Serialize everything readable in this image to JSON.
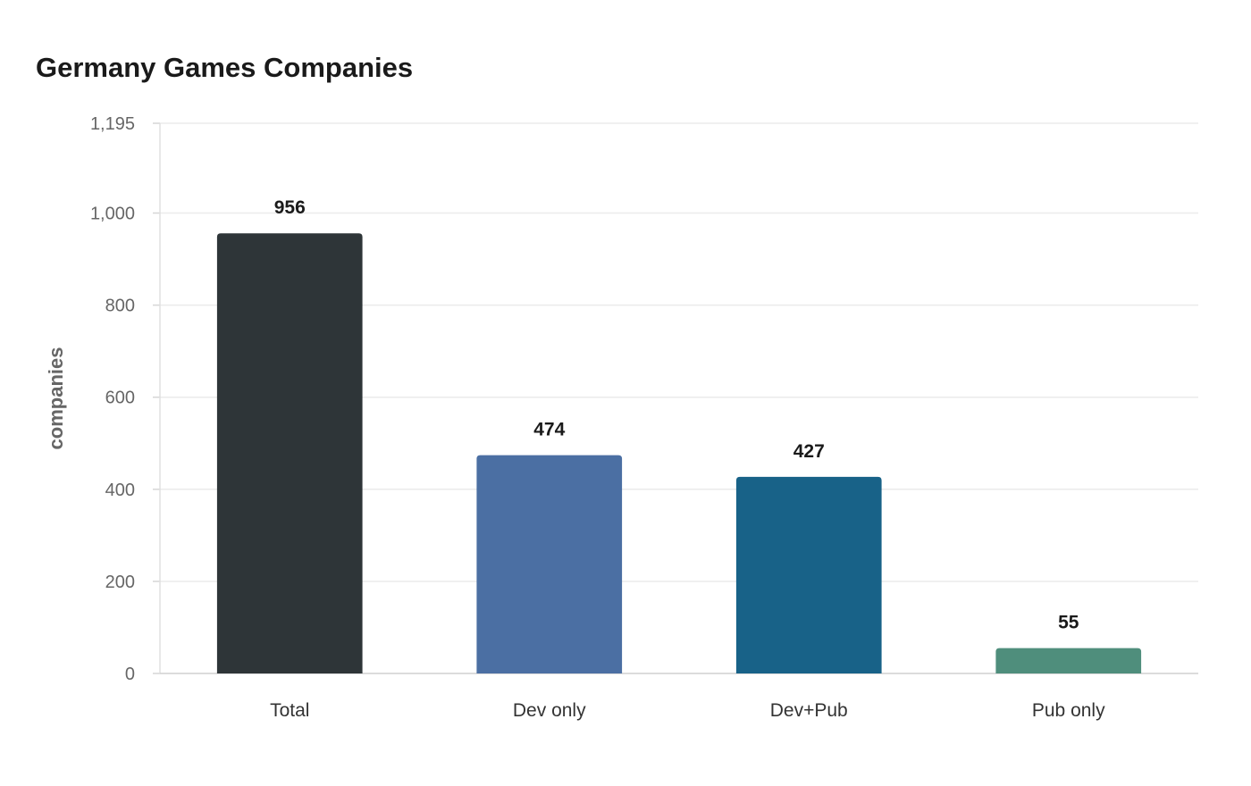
{
  "chart_data": {
    "type": "bar",
    "title": "Germany Games Companies",
    "xlabel": "",
    "ylabel": "companies",
    "categories": [
      "Total",
      "Dev only",
      "Dev+Pub",
      "Pub only"
    ],
    "values": [
      956,
      474,
      427,
      55
    ],
    "value_labels": [
      "956",
      "474",
      "427",
      "55"
    ],
    "colors": [
      "#2e3538",
      "#4b6fa3",
      "#186288",
      "#4f8e7c"
    ],
    "ylim": [
      0,
      1195
    ],
    "yticks": [
      0,
      200,
      400,
      600,
      800,
      1000,
      1195
    ],
    "ytick_labels": [
      "0",
      "200",
      "400",
      "600",
      "800",
      "1,000",
      "1,195"
    ],
    "grid": true,
    "legend": "none"
  }
}
